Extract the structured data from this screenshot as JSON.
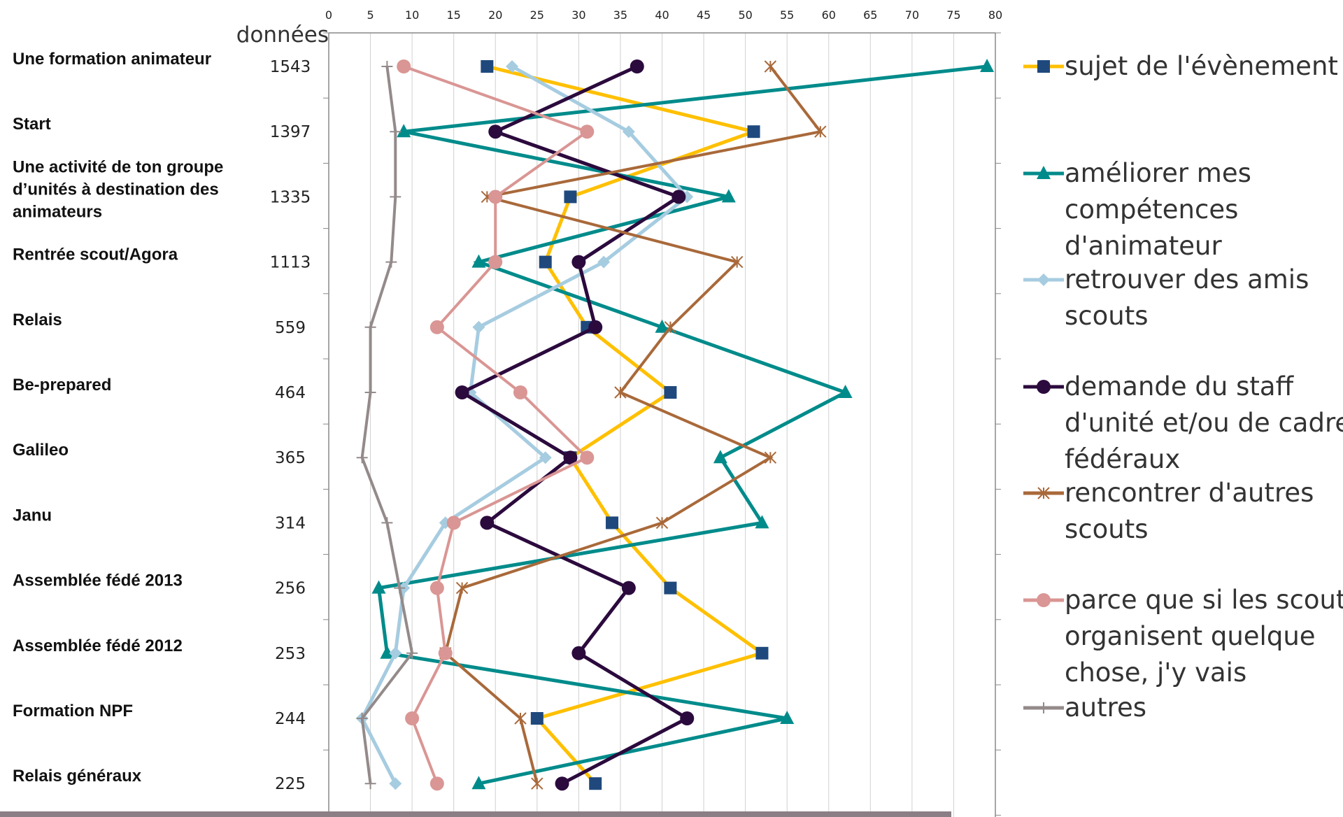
{
  "chart_data": {
    "type": "line",
    "orientation": "horizontal",
    "title": "",
    "count_header": "données",
    "xlabel": "",
    "ylabel": "",
    "xlim": [
      0,
      80
    ],
    "x_ticks": [
      0,
      5,
      10,
      15,
      20,
      25,
      30,
      35,
      40,
      45,
      50,
      55,
      60,
      65,
      70,
      75,
      80
    ],
    "grid": "vertical",
    "legend_position": "right",
    "categories": [
      "Une formation animateur",
      "Start",
      "Une activité de ton groupe d’unités à destination des animateurs",
      "Rentrée scout/Agora",
      "Relais",
      "Be-prepared",
      "Galileo",
      "Janu",
      "Assemblée fédé 2013",
      "Assemblée fédé 2012",
      "Formation NPF",
      "Relais généraux"
    ],
    "category_lines": [
      [
        "Une formation animateur"
      ],
      [
        "Start"
      ],
      [
        "Une activité de ton groupe",
        "d’unités à destination des",
        "animateurs"
      ],
      [
        "Rentrée scout/Agora"
      ],
      [
        "Relais"
      ],
      [
        "Be-prepared"
      ],
      [
        "Galileo"
      ],
      [
        "Janu"
      ],
      [
        "Assemblée fédé 2013"
      ],
      [
        "Assemblée fédé 2012"
      ],
      [
        "Formation NPF"
      ],
      [
        "Relais généraux"
      ]
    ],
    "counts": [
      "1543",
      "1397",
      "1335",
      "1113",
      "559",
      "464",
      "365",
      "314",
      "256",
      "253",
      "244",
      "225"
    ],
    "series": [
      {
        "name": "sujet de l'évènement",
        "legend_lines": [
          "sujet de l'évènement"
        ],
        "color": "#ffc000",
        "marker": "square",
        "marker_color": "#1f497d",
        "values": [
          19,
          51,
          29,
          26,
          31,
          41,
          29,
          34,
          41,
          52,
          25,
          32
        ]
      },
      {
        "name": "améliorer mes compétences d'animateur",
        "legend_lines": [
          "améliorer mes",
          "compétences",
          "d'animateur"
        ],
        "color": "#008b8b",
        "marker": "triangle",
        "marker_color": "#008b8b",
        "values": [
          79,
          9,
          48,
          18,
          40,
          62,
          47,
          52,
          6,
          7,
          55,
          18
        ]
      },
      {
        "name": "retrouver des amis scouts",
        "legend_lines": [
          "retrouver des amis",
          "scouts"
        ],
        "color": "#a6cce0",
        "marker": "diamond",
        "marker_color": "#a6cce0",
        "values": [
          22,
          36,
          43,
          33,
          18,
          17,
          26,
          14,
          9,
          8,
          4,
          8
        ]
      },
      {
        "name": "demande du staff d'unité et/ou de cadres fédéraux",
        "legend_lines": [
          "demande du staff",
          "d'unité et/ou de cadres",
          "fédéraux"
        ],
        "color": "#2b0a3d",
        "marker": "circle",
        "marker_color": "#2b0a3d",
        "values": [
          37,
          20,
          42,
          30,
          32,
          16,
          29,
          19,
          36,
          30,
          43,
          28
        ]
      },
      {
        "name": "rencontrer d'autres scouts",
        "legend_lines": [
          "rencontrer d'autres",
          "scouts"
        ],
        "color": "#a9693a",
        "marker": "asterisk",
        "marker_color": "#a9693a",
        "values": [
          53,
          59,
          19,
          49,
          41,
          35,
          53,
          40,
          16,
          14,
          23,
          25
        ]
      },
      {
        "name": "parce que si les scouts organisent quelque chose, j'y vais",
        "legend_lines": [
          "parce que si les scouts",
          "organisent quelque",
          "chose, j'y vais"
        ],
        "color": "#d99694",
        "marker": "circle",
        "marker_color": "#d99694",
        "values": [
          9,
          31,
          20,
          20,
          13,
          23,
          31,
          15,
          13,
          14,
          10,
          13
        ]
      },
      {
        "name": "autres",
        "legend_lines": [
          "autres"
        ],
        "color": "#948a8a",
        "marker": "plus",
        "marker_color": "#948a8a",
        "values": [
          7,
          8,
          8,
          7.5,
          5,
          5,
          4,
          7,
          8.5,
          10,
          4,
          5
        ]
      }
    ]
  }
}
